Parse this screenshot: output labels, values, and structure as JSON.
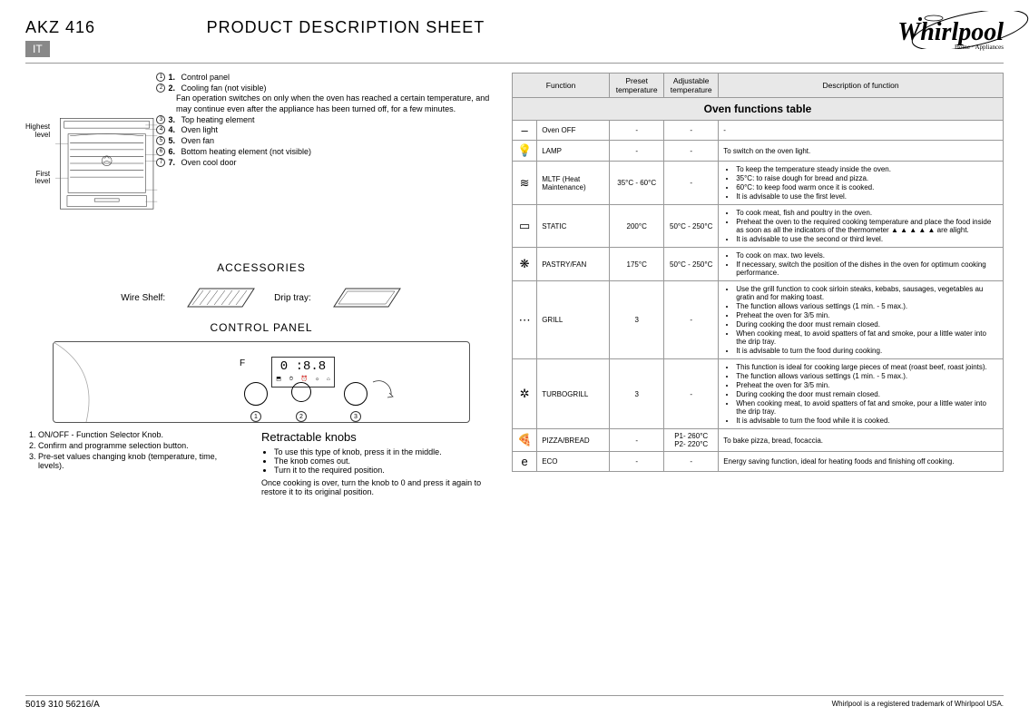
{
  "header": {
    "model": "AKZ 416",
    "title": "PRODUCT DESCRIPTION SHEET",
    "lang": "IT",
    "brand": "Whirlpool",
    "brand_sub": "Home · Appliances"
  },
  "diagram": {
    "highest_level": "Highest level",
    "first_level": "First level",
    "parts": [
      {
        "n": "1.",
        "t": "Control panel"
      },
      {
        "n": "2.",
        "t": "Cooling fan (not visible)"
      },
      {
        "n": "",
        "t": "Fan operation switches on only when the oven has reached a certain temperature, and may continue even after the appliance has been turned off, for a few minutes."
      },
      {
        "n": "3.",
        "t": "Top heating element"
      },
      {
        "n": "4.",
        "t": "Oven light"
      },
      {
        "n": "5.",
        "t": "Oven fan"
      },
      {
        "n": "6.",
        "t": "Bottom heating element (not visible)"
      },
      {
        "n": "7.",
        "t": "Oven cool door"
      }
    ]
  },
  "accessories": {
    "title": "ACCESSORIES",
    "wire": "Wire Shelf:",
    "drip": "Drip tray:"
  },
  "control": {
    "title": "CONTROL PANEL",
    "f": "F",
    "display": "0 :8.8",
    "list": [
      "ON/OFF - Function Selector Knob.",
      "Confirm and programme selection button.",
      "Pre-set values changing knob (temperature, time, levels)."
    ],
    "retract_title": "Retractable knobs",
    "retract_items": [
      "To use this type of knob, press it in the middle.",
      "The knob comes out.",
      "Turn it to the required position."
    ],
    "retract_after": "Once cooking is over, turn the knob to 0 and press it again to restore it to its original position."
  },
  "table": {
    "title": "Oven functions table",
    "cols": [
      "Function",
      "Preset temperature",
      "Adjustable temperature",
      "Description of function"
    ],
    "rows": [
      {
        "icon": "–",
        "func": "Oven OFF",
        "preset": "-",
        "adj": "-",
        "desc": [
          "-"
        ]
      },
      {
        "icon": "💡",
        "func": "LAMP",
        "preset": "-",
        "adj": "-",
        "desc": [
          "To switch on the oven light."
        ]
      },
      {
        "icon": "≋",
        "func": "MLTF (Heat Maintenance)",
        "preset": "35°C - 60°C",
        "adj": "-",
        "desc": [
          "To keep the temperature steady inside the oven.",
          "35°C: to raise dough for bread and pizza.",
          "60°C: to keep food warm once it is cooked.",
          "It is advisable to use the first level."
        ]
      },
      {
        "icon": "▭",
        "func": "STATIC",
        "preset": "200°C",
        "adj": "50°C - 250°C",
        "desc": [
          "To cook meat, fish and poultry in the oven.",
          "Preheat the oven to the required cooking temperature and place the food inside as soon as all the indicators of the thermometer ▲ ▲ ▲ ▲ ▲ are alight.",
          "It is advisable to use the second or third level."
        ]
      },
      {
        "icon": "❋",
        "func": "PASTRY/FAN",
        "preset": "175°C",
        "adj": "50°C - 250°C",
        "desc": [
          "To cook on max. two levels.",
          "If necessary, switch the position of the dishes in the oven for optimum cooking performance."
        ]
      },
      {
        "icon": "⋯",
        "func": "GRILL",
        "preset": "3",
        "adj": "-",
        "desc": [
          "Use the grill function to cook sirloin steaks, kebabs, sausages, vegetables au gratin and for making toast.",
          "The function allows various settings (1 min. - 5 max.).",
          "Preheat the oven for 3/5 min.",
          "During cooking the door must remain closed.",
          "When cooking meat, to avoid spatters of fat and smoke, pour a little water into the drip tray.",
          "It is advisable to turn the food during cooking."
        ]
      },
      {
        "icon": "✲",
        "func": "TURBOGRILL",
        "preset": "3",
        "adj": "-",
        "desc": [
          "This function is ideal for cooking large pieces of meat (roast beef, roast joints).",
          "The function allows various settings (1 min. - 5 max.).",
          "Preheat the oven for 3/5 min.",
          "During cooking the door must remain closed.",
          "When cooking meat, to avoid spatters of fat and smoke, pour a little water into the drip tray.",
          "It is advisable to turn the food while it is cooked."
        ]
      },
      {
        "icon": "🍕",
        "func": "PIZZA/BREAD",
        "preset": "-",
        "adj": "P1- 260°C\nP2- 220°C",
        "desc": [
          "To bake pizza, bread, focaccia."
        ]
      },
      {
        "icon": "e",
        "func": "ECO",
        "preset": "-",
        "adj": "-",
        "desc": [
          "Energy saving function, ideal for heating foods and finishing off cooking."
        ]
      }
    ]
  },
  "footer": {
    "code": "5019 310 56216/A",
    "tm": "Whirlpool is a registered trademark of Whirlpool USA."
  }
}
